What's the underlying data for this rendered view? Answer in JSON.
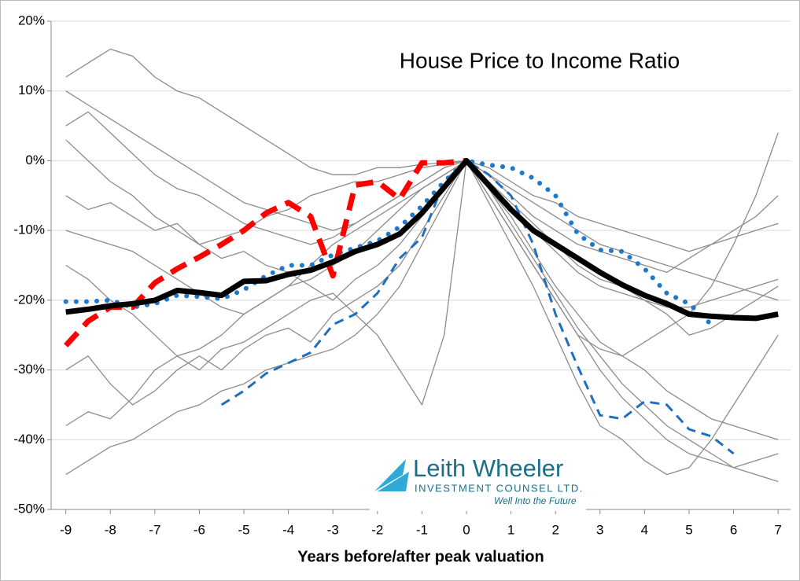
{
  "chart_data": {
    "type": "line",
    "title": "House Price to Income Ratio",
    "x_label": "Years before/after peak valuation",
    "annotations": [
      "Leith Wheeler",
      "INVESTMENT COUNSEL LTD.",
      "Well Into the Future"
    ],
    "x": [
      -9,
      -8.5,
      -8,
      -7.5,
      -7,
      -6.5,
      -6,
      -5.5,
      -5,
      -4.5,
      -4,
      -3.5,
      -3,
      -2.5,
      -2,
      -1.5,
      -1,
      -0.5,
      0,
      0.5,
      1,
      1.5,
      2,
      2.5,
      3,
      3.5,
      4,
      4.5,
      5,
      5.5,
      6,
      6.5,
      7
    ],
    "xlim": [
      -9.33,
      7.28
    ],
    "xticks": [
      -9,
      -8,
      -7,
      -6,
      -5,
      -4,
      -3,
      -2,
      -1,
      0,
      1,
      2,
      3,
      4,
      5,
      6,
      7
    ],
    "ylim": [
      -50,
      20
    ],
    "yticks": [
      {
        "value": -50,
        "label": "-50%"
      },
      {
        "value": -40,
        "label": "-40%"
      },
      {
        "value": -30,
        "label": "-30%"
      },
      {
        "value": -20,
        "label": "-20%"
      },
      {
        "value": -10,
        "label": "-10%"
      },
      {
        "value": 0,
        "label": "0%"
      },
      {
        "value": 10,
        "label": "10%"
      },
      {
        "value": 20,
        "label": "20%"
      }
    ],
    "grid": true,
    "series": [
      {
        "color": "#8c8c8c",
        "style": "thin",
        "values": [
          12,
          14,
          16,
          15,
          12,
          10,
          9,
          7,
          5,
          3,
          1,
          -1,
          -2,
          -2,
          -1,
          -1,
          -0.5,
          -0.3,
          0,
          -2,
          -4,
          -6,
          -8,
          -10,
          -12,
          -13,
          -14,
          -15,
          -16,
          -17,
          -18,
          -19,
          -20
        ]
      },
      {
        "color": "#8c8c8c",
        "style": "thin",
        "values": [
          -45,
          -43,
          -41,
          -40,
          -38,
          -36,
          -35,
          -33,
          -32,
          -30,
          -29,
          -28,
          -27,
          -25,
          -22,
          -18,
          -12,
          -6,
          0,
          -5,
          -10,
          -15,
          -20,
          -25,
          -30,
          -34,
          -37,
          -40,
          -42,
          -43,
          -44,
          -43,
          -42
        ]
      },
      {
        "color": "#8c8c8c",
        "style": "thin",
        "values": [
          -5,
          -7,
          -6,
          -8,
          -10,
          -9,
          -12,
          -11,
          -10,
          -8,
          -7,
          -5,
          -4,
          -3,
          -3,
          -2,
          -1,
          -0.5,
          0,
          -1,
          -3,
          -5,
          -6,
          -8,
          -9,
          -10,
          -11,
          -12,
          -13,
          -12,
          -11,
          -10,
          -9
        ]
      },
      {
        "color": "#8c8c8c",
        "style": "thin",
        "values": [
          -30,
          -28,
          -32,
          -35,
          -33,
          -30,
          -28,
          -30,
          -27,
          -25,
          -24,
          -26,
          -22,
          -20,
          -18,
          -15,
          -10,
          -5,
          0,
          -4,
          -8,
          -13,
          -18,
          -22,
          -26,
          -28,
          -30,
          -33,
          -35,
          -37,
          -38,
          -39,
          -40
        ]
      },
      {
        "color": "#8c8c8c",
        "style": "thin",
        "values": [
          3,
          0,
          -3,
          -5,
          -8,
          -10,
          -12,
          -14,
          -13,
          -15,
          -16,
          -18,
          -20,
          -17,
          -15,
          -12,
          -8,
          -4,
          0,
          -3,
          -6,
          -9,
          -12,
          -15,
          -17,
          -18,
          -20,
          -22,
          -25,
          -24,
          -22,
          -20,
          -18
        ]
      },
      {
        "color": "#8c8c8c",
        "style": "thin",
        "values": [
          -38,
          -36,
          -37,
          -34,
          -30,
          -28,
          -27,
          -25,
          -22,
          -20,
          -18,
          -15,
          -12,
          -10,
          -8,
          -6,
          -4,
          -2,
          0,
          -2,
          -5,
          -8,
          -10,
          -12,
          -13,
          -14,
          -15,
          -16,
          -14,
          -12,
          -10,
          -8,
          -5
        ]
      },
      {
        "color": "#8c8c8c",
        "style": "thin",
        "values": [
          10,
          8,
          6,
          4,
          2,
          0,
          -2,
          -4,
          -6,
          -7,
          -8,
          -9,
          -10,
          -9,
          -7,
          -5,
          -3,
          -1,
          0,
          -4,
          -9,
          -14,
          -19,
          -24,
          -28,
          -32,
          -35,
          -38,
          -40,
          -42,
          -44,
          -45,
          -46
        ]
      },
      {
        "color": "#8c8c8c",
        "style": "thin",
        "values": [
          -15,
          -17,
          -20,
          -22,
          -25,
          -28,
          -30,
          -27,
          -26,
          -24,
          -22,
          -20,
          -19,
          -22,
          -25,
          -30,
          -35,
          -25,
          0,
          -6,
          -12,
          -18,
          -25,
          -32,
          -38,
          -40,
          -43,
          -45,
          -44,
          -40,
          -35,
          -30,
          -25
        ]
      },
      {
        "color": "#8c8c8c",
        "style": "thin",
        "values": [
          -10,
          -11,
          -12,
          -13,
          -15,
          -17,
          -19,
          -21,
          -22,
          -20,
          -18,
          -17,
          -15,
          -13,
          -10,
          -7,
          -4,
          -2,
          0,
          -3,
          -7,
          -10,
          -13,
          -16,
          -18,
          -19,
          -20,
          -21,
          -21,
          -20,
          -19,
          -18,
          -17
        ]
      },
      {
        "color": "#8c8c8c",
        "style": "thin",
        "values": [
          5,
          7,
          4,
          1,
          -2,
          -4,
          -5,
          -7,
          -9,
          -10,
          -11,
          -12,
          -11,
          -9,
          -7,
          -5,
          -3,
          -1,
          0,
          -5,
          -10,
          -15,
          -20,
          -25,
          -27,
          -28,
          -26,
          -24,
          -22,
          -18,
          -12,
          -5,
          4
        ]
      },
      {
        "color": "#1f6fbf",
        "style": "dashed",
        "values": [
          null,
          null,
          null,
          null,
          null,
          null,
          null,
          -35,
          -33,
          -30.5,
          -29,
          -27.5,
          -23.5,
          -22,
          -19,
          -14,
          -11,
          -3,
          0,
          -2,
          -5,
          -12,
          -22,
          -29.5,
          -36.5,
          -37,
          -34.5,
          -35,
          -38.5,
          -39.5,
          -42,
          null,
          null
        ]
      },
      {
        "color": "#1f78c8",
        "style": "dotted",
        "values": [
          -20.2,
          -20.2,
          -20,
          -21,
          -20.5,
          -19.3,
          -19.5,
          -19.8,
          -18.5,
          -16.5,
          -15,
          -15,
          -13.5,
          -12.5,
          -11.5,
          -9.5,
          -6.5,
          -3,
          0,
          -0.6,
          -1,
          -2.5,
          -5,
          -10.5,
          -12.8,
          -13,
          -15.5,
          -19,
          -20.5,
          -23.5,
          null,
          null,
          null
        ]
      },
      {
        "color": "#ff0000",
        "style": "dashed-thick",
        "values": [
          -26.5,
          -23,
          -21,
          -21,
          -17.5,
          -15.5,
          -13.8,
          -12,
          -10,
          -7.5,
          -6,
          -8,
          -16.5,
          -3.5,
          -3,
          -5.5,
          -0.3,
          -0.3,
          0,
          null,
          null,
          null,
          null,
          null,
          null,
          null,
          null,
          null,
          null,
          null,
          null,
          null,
          null
        ]
      },
      {
        "color": "#000000",
        "style": "thick",
        "values": [
          -21.7,
          -21.3,
          -20.8,
          -20.5,
          -20,
          -18.6,
          -18.9,
          -19.3,
          -17.3,
          -17.2,
          -16.3,
          -15.7,
          -14.5,
          -13,
          -12,
          -10.5,
          -7.5,
          -3.8,
          0,
          -3.5,
          -7,
          -10,
          -12,
          -14,
          -16,
          -17.8,
          -19.3,
          -20.5,
          -22,
          -22.3,
          -22.5,
          -22.6,
          -22
        ]
      }
    ]
  }
}
